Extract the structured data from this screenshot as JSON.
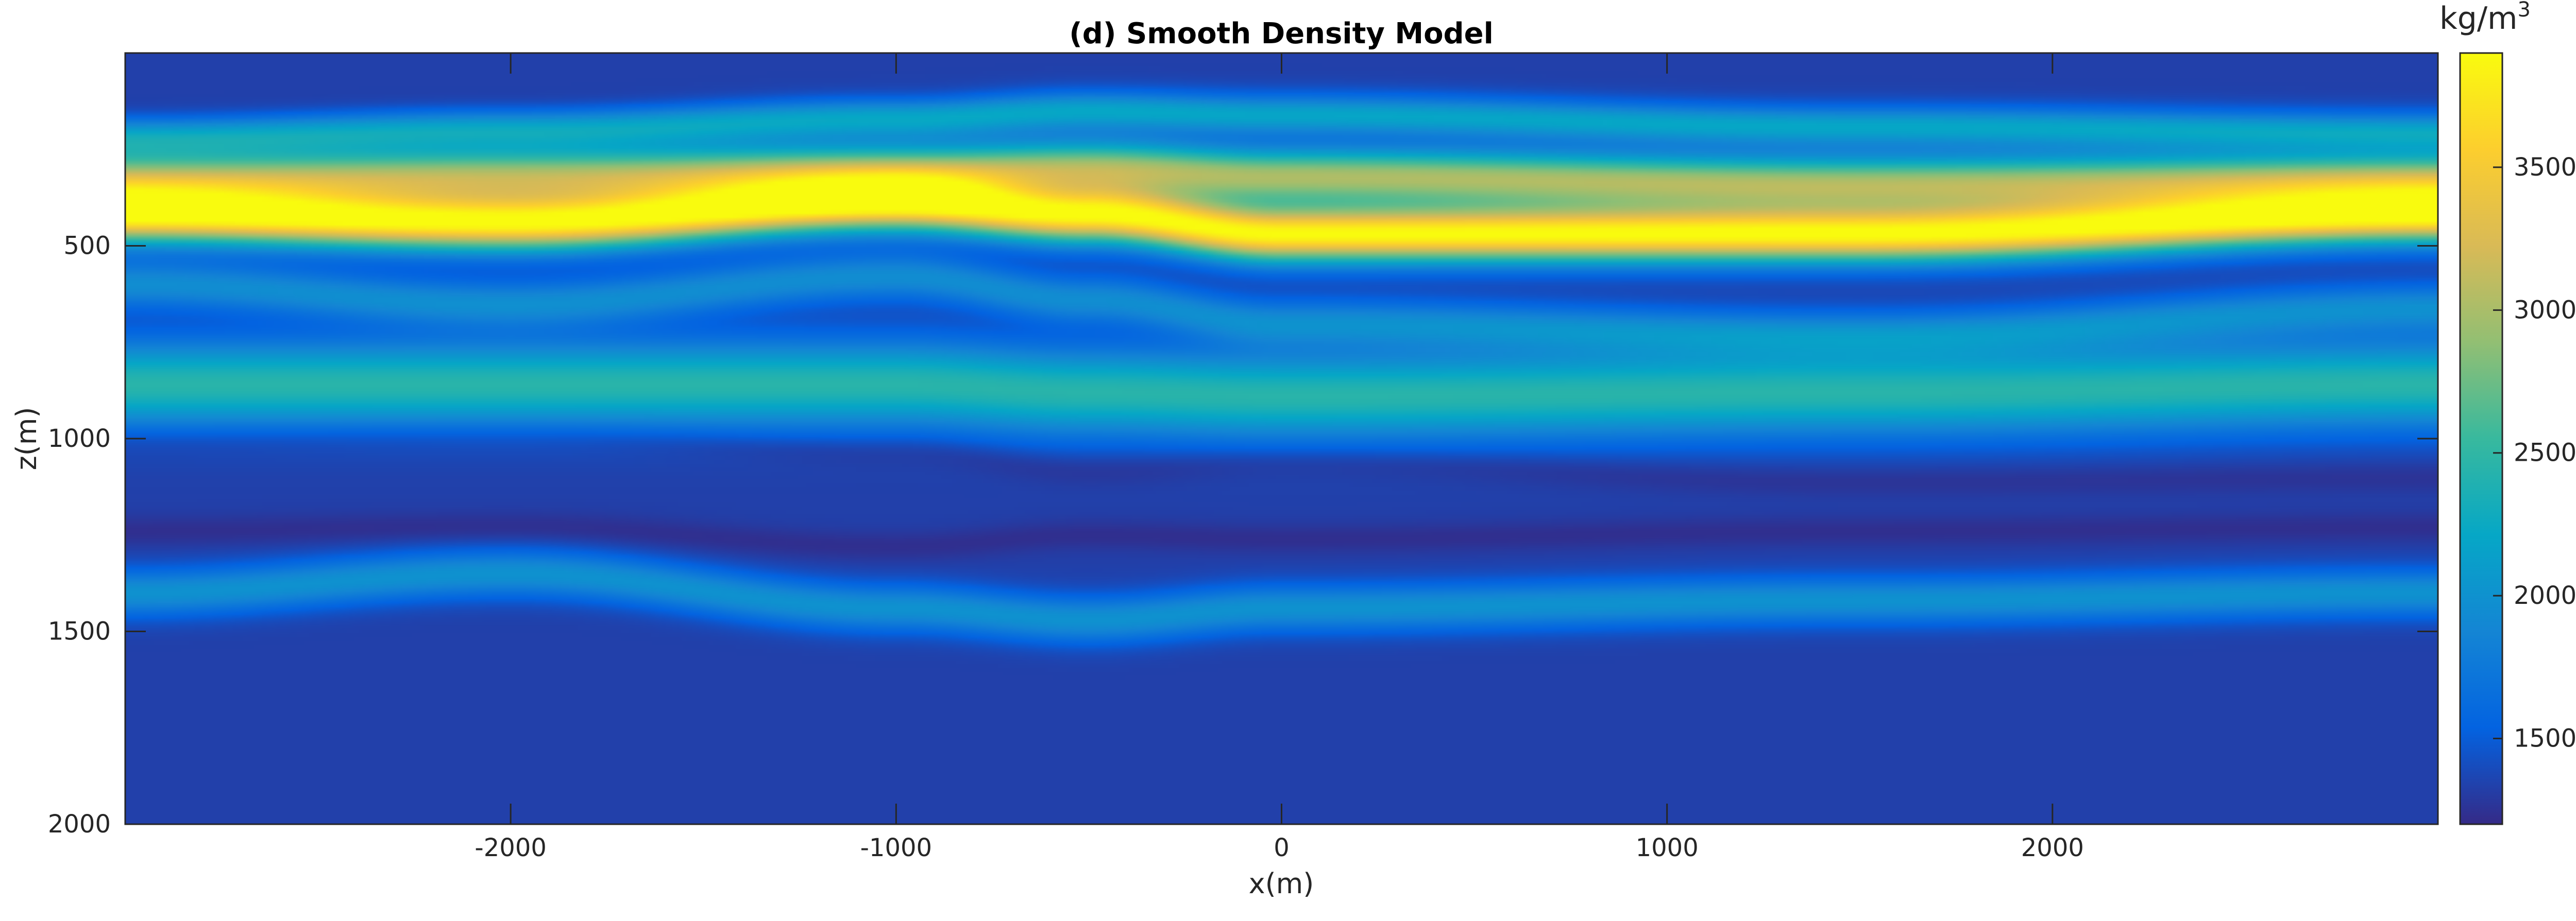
{
  "chart_data": {
    "type": "heatmap",
    "title": "(d) Smooth Density Model",
    "xlabel": "x(m)",
    "ylabel": "z(m)",
    "xlim": [
      -3000,
      3000
    ],
    "ylim": [
      0,
      2000
    ],
    "y_reversed": true,
    "x_ticks": [
      -2000,
      -1000,
      0,
      1000,
      2000
    ],
    "y_ticks": [
      500,
      1000,
      1500,
      2000
    ],
    "colormap": "parula",
    "colorbar": {
      "label_base": "kg/m",
      "label_exponent": "3",
      "range": [
        1200,
        3900
      ],
      "ticks": [
        1500,
        2000,
        2500,
        3000,
        3500
      ]
    },
    "layers": [
      {
        "z": [
          150,
          130,
          110,
          100,
          130,
          150,
          165
        ],
        "x": [
          -3000,
          -2000,
          -1000,
          -500,
          0,
          1500,
          3000
        ],
        "thickness": 30,
        "value": 1300
      },
      {
        "z": [
          220,
          200,
          170,
          150,
          160,
          190,
          205
        ],
        "x": [
          -3000,
          -2000,
          -1000,
          -500,
          0,
          1500,
          3000
        ],
        "thickness": 50,
        "value": 2200
      },
      {
        "z": [
          330,
          320,
          310,
          300,
          320,
          340,
          330
        ],
        "x": [
          -3000,
          -2000,
          -1000,
          -500,
          0,
          1500,
          3000
        ],
        "thickness": 70,
        "value": 3000
      },
      {
        "z": [
          420,
          440,
          390,
          420,
          470,
          470,
          420
        ],
        "x": [
          -3000,
          -2000,
          -1000,
          -500,
          0,
          1500,
          3000
        ],
        "thickness": 70,
        "value": 3900
      },
      {
        "z": [
          600,
          650,
          580,
          640,
          700,
          730,
          660
        ],
        "x": [
          -3000,
          -2000,
          -1000,
          -500,
          0,
          1500,
          3000
        ],
        "thickness": 60,
        "value": 1950
      },
      {
        "z": [
          860,
          860,
          860,
          880,
          890,
          880,
          860
        ],
        "x": [
          -3000,
          -2000,
          -1000,
          -500,
          0,
          1500,
          3000
        ],
        "thickness": 110,
        "value": 2450
      },
      {
        "z": [
          1000,
          990,
          1030,
          1080,
          1060,
          1110,
          1100
        ],
        "x": [
          -3000,
          -2000,
          -1000,
          -500,
          0,
          1500,
          3000
        ],
        "thickness": 40,
        "value": 1250
      },
      {
        "z": [
          1240,
          1230,
          1280,
          1250,
          1260,
          1240,
          1230
        ],
        "x": [
          -3000,
          -2000,
          -1000,
          -500,
          0,
          1500,
          3000
        ],
        "thickness": 40,
        "value": 1230
      },
      {
        "z": [
          1400,
          1350,
          1440,
          1470,
          1440,
          1420,
          1400
        ],
        "x": [
          -3000,
          -2000,
          -1000,
          -500,
          0,
          1500,
          3000
        ],
        "thickness": 60,
        "value": 2000
      }
    ],
    "background_value": 1330
  }
}
